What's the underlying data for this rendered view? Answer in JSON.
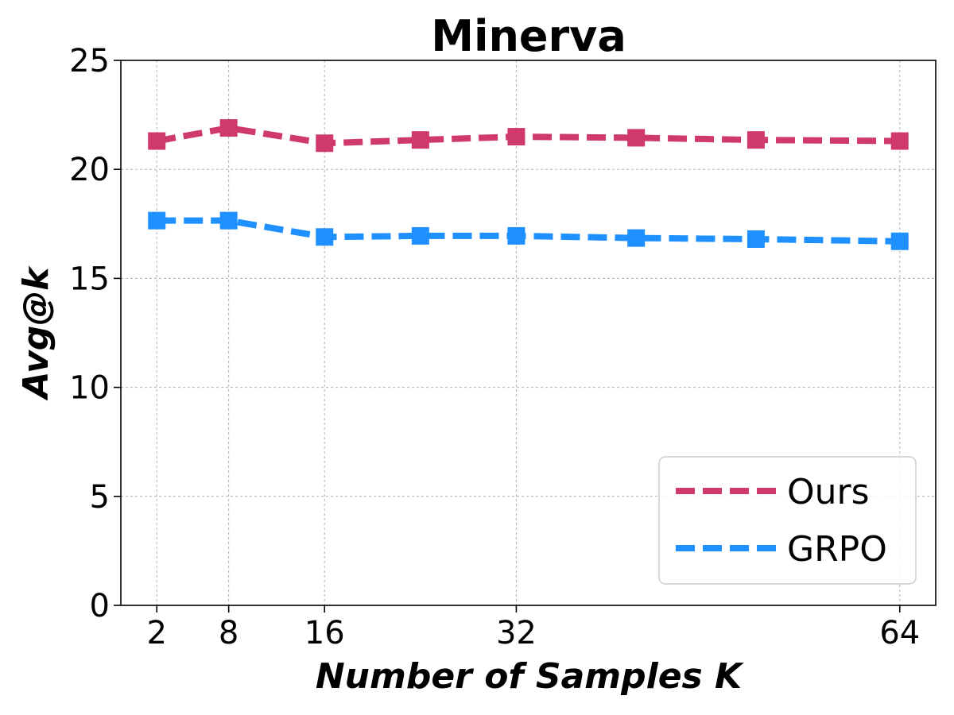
{
  "chart_data": {
    "type": "line",
    "title": "Minerva",
    "xlabel": "Number of Samples K",
    "ylabel": "Avg@k",
    "x": [
      2,
      8,
      16,
      24,
      32,
      42,
      52,
      64
    ],
    "x_ticks": [
      2,
      8,
      16,
      32,
      64
    ],
    "x_tick_labels": [
      "2",
      "8",
      "16",
      "32",
      "64"
    ],
    "xlim": [
      -1,
      67
    ],
    "ylim": [
      0,
      25
    ],
    "y_ticks": [
      0,
      5,
      10,
      15,
      20,
      25
    ],
    "y_tick_labels": [
      "0",
      "5",
      "10",
      "15",
      "20",
      "25"
    ],
    "grid": true,
    "legend_position": "bottom-right",
    "series": [
      {
        "name": "Ours",
        "color": "#D0396C",
        "marker": "square",
        "line_style": "dashed",
        "values": [
          21.3,
          21.9,
          21.2,
          21.35,
          21.5,
          21.45,
          21.35,
          21.3
        ]
      },
      {
        "name": "GRPO",
        "color": "#1E90FF",
        "marker": "square",
        "line_style": "dashed",
        "values": [
          17.65,
          17.65,
          16.9,
          16.95,
          16.95,
          16.85,
          16.8,
          16.7
        ]
      }
    ]
  }
}
